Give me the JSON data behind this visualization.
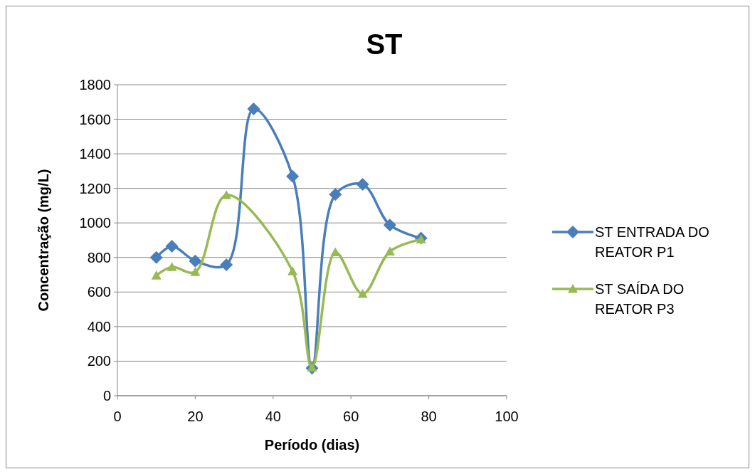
{
  "chart_data": {
    "type": "line",
    "title": "ST",
    "xlabel": "Período (dias)",
    "ylabel": "Concentração (mg/L)",
    "xlim": [
      0,
      100
    ],
    "xticks": [
      0,
      20,
      40,
      60,
      80,
      100
    ],
    "ylim": [
      0,
      1800
    ],
    "yticks": [
      0,
      200,
      400,
      600,
      800,
      1000,
      1200,
      1400,
      1600,
      1800
    ],
    "grid": "y",
    "legend": "right",
    "series": [
      {
        "name": "ST ENTRADA DO REATOR P1",
        "color": "#4a7ebb",
        "marker": "diamond",
        "x": [
          10,
          14,
          20,
          28,
          35,
          45,
          50,
          56,
          63,
          70,
          78
        ],
        "values": [
          800,
          865,
          780,
          758,
          1660,
          1270,
          160,
          1165,
          1223,
          988,
          912
        ]
      },
      {
        "name": "ST SAÍDA DO REATOR P3",
        "color": "#98b954",
        "marker": "triangle",
        "x": [
          10,
          14,
          20,
          28,
          45,
          50,
          56,
          63,
          70,
          78
        ],
        "values": [
          696,
          745,
          716,
          1161,
          720,
          163,
          830,
          589,
          835,
          905
        ]
      }
    ]
  }
}
